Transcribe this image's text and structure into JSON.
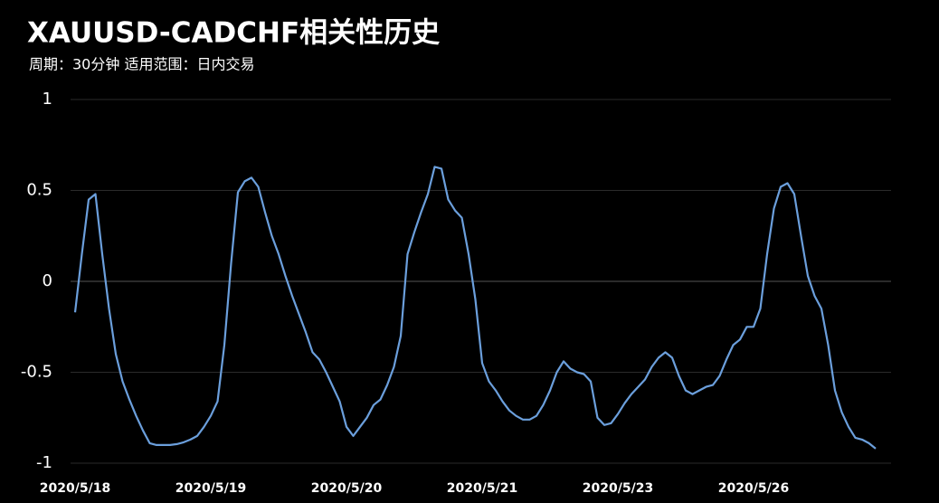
{
  "chart_data": {
    "type": "line",
    "title": "XAUUSD-CADCHF相关性历史",
    "subtitle": "周期：30分钟  适用范围：日内交易",
    "categories": [
      "2020/5/18",
      null,
      null,
      null,
      null,
      null,
      null,
      null,
      null,
      null,
      null,
      null,
      null,
      null,
      null,
      null,
      null,
      null,
      null,
      null,
      "2020/5/19",
      null,
      null,
      null,
      null,
      null,
      null,
      null,
      null,
      null,
      null,
      null,
      null,
      null,
      null,
      null,
      null,
      null,
      null,
      null,
      "2020/5/20",
      null,
      null,
      null,
      null,
      null,
      null,
      null,
      null,
      null,
      null,
      null,
      null,
      null,
      null,
      null,
      null,
      null,
      null,
      null,
      "2020/5/21",
      null,
      null,
      null,
      null,
      null,
      null,
      null,
      null,
      null,
      null,
      null,
      null,
      null,
      null,
      null,
      null,
      null,
      null,
      null,
      "2020/5/23",
      null,
      null,
      null,
      null,
      null,
      null,
      null,
      null,
      null,
      null,
      null,
      null,
      null,
      null,
      null,
      null,
      null,
      null,
      null,
      "2020/5/26",
      null,
      null,
      null,
      null,
      null,
      null,
      null,
      null,
      null,
      null,
      null,
      null,
      null,
      null,
      null,
      null,
      null,
      null
    ],
    "values": [
      -0.17,
      0.15,
      0.45,
      0.48,
      0.15,
      -0.15,
      -0.4,
      -0.55,
      -0.65,
      -0.74,
      -0.82,
      -0.89,
      -0.9,
      -0.9,
      -0.9,
      -0.895,
      -0.885,
      -0.87,
      -0.85,
      -0.8,
      -0.74,
      -0.66,
      -0.35,
      0.1,
      0.49,
      0.55,
      0.57,
      0.52,
      0.38,
      0.25,
      0.15,
      0.03,
      -0.08,
      -0.18,
      -0.28,
      -0.39,
      -0.43,
      -0.5,
      -0.58,
      -0.66,
      -0.8,
      -0.85,
      -0.8,
      -0.75,
      -0.68,
      -0.65,
      -0.57,
      -0.47,
      -0.3,
      0.15,
      0.27,
      0.38,
      0.48,
      0.63,
      0.62,
      0.45,
      0.39,
      0.35,
      0.15,
      -0.1,
      -0.45,
      -0.55,
      -0.6,
      -0.66,
      -0.71,
      -0.74,
      -0.76,
      -0.76,
      -0.74,
      -0.68,
      -0.6,
      -0.5,
      -0.44,
      -0.48,
      -0.5,
      -0.51,
      -0.55,
      -0.75,
      -0.79,
      -0.78,
      -0.73,
      -0.67,
      -0.62,
      -0.58,
      -0.54,
      -0.47,
      -0.42,
      -0.39,
      -0.42,
      -0.52,
      -0.6,
      -0.62,
      -0.6,
      -0.58,
      -0.57,
      -0.52,
      -0.43,
      -0.35,
      -0.32,
      -0.25,
      -0.25,
      -0.15,
      0.15,
      0.4,
      0.52,
      0.54,
      0.48,
      0.25,
      0.03,
      -0.08,
      -0.15,
      -0.35,
      -0.6,
      -0.72,
      -0.8,
      -0.86,
      -0.87,
      -0.89,
      -0.92
    ],
    "color": "#6b9fdc",
    "ylim": [
      -1,
      1
    ],
    "yticks": [
      1,
      0.5,
      0,
      -0.5,
      -1
    ],
    "grid": true
  }
}
